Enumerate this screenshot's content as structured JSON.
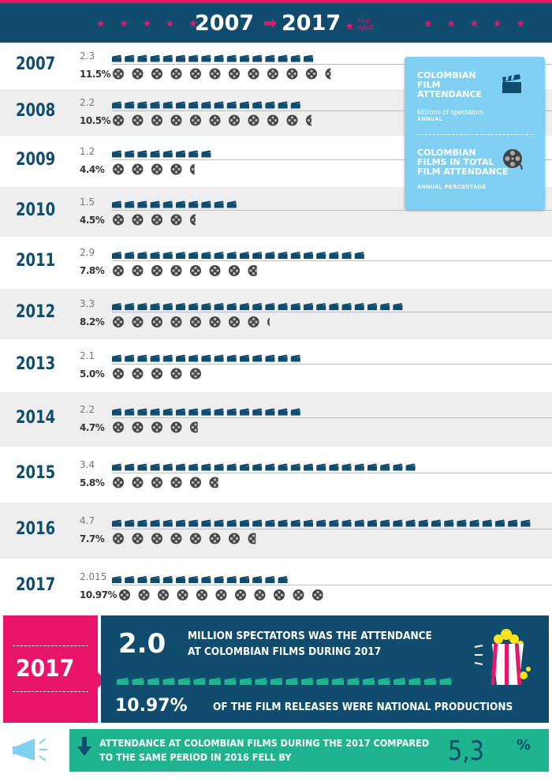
{
  "header": {
    "year_start": "2007",
    "year_end": "2017",
    "note_line1": "First",
    "note_line2": "HALF",
    "stars_left": "★ ★ ★ ★ ★",
    "stars_right": "★ ★ ★ ★ ★"
  },
  "legend": {
    "attendance_title_line1": "COLOMBIAN",
    "attendance_title_line2": "FILM",
    "attendance_title_line3": "ATTENDANCE",
    "attendance_subtitle": "Millions of spectators",
    "attendance_unit": "ANNUAL",
    "share_title_line1": "COLOMBIAN",
    "share_title_line2": "FILMS IN TOTAL",
    "share_title_line3": "FILM ATTENDANCE",
    "share_unit": "ANNUAL PERCENTAGE",
    "attendance_icon": "clapperboard-icon",
    "share_icon": "film-reel-icon"
  },
  "chart_data": {
    "type": "bar",
    "title": "2007 → 2017",
    "categories": [
      "2007",
      "2008",
      "2009",
      "2010",
      "2011",
      "2012",
      "2013",
      "2014",
      "2015",
      "2016",
      "2017"
    ],
    "series": [
      {
        "name": "COLOMBIAN FILM ATTENDANCE",
        "unit": "Millions of spectators",
        "values": [
          2.3,
          2.2,
          1.2,
          1.5,
          2.9,
          3.3,
          2.1,
          2.2,
          3.4,
          4.7,
          2.015
        ],
        "labels": [
          "2.3",
          "2.2",
          "1.2",
          "1.5",
          "2.9",
          "3.3",
          "2.1",
          "2.2",
          "3.4",
          "4.7",
          "2.015"
        ],
        "icon": "clapperboard-icon",
        "color": "#0f4c6e"
      },
      {
        "name": "COLOMBIAN FILMS IN TOTAL FILM ATTENDANCE",
        "unit": "ANNUAL PERCENTAGE",
        "values": [
          11.5,
          10.5,
          4.4,
          4.5,
          7.8,
          8.2,
          5.0,
          4.7,
          5.8,
          7.7,
          10.97
        ],
        "labels": [
          "11.5%",
          "10.5%",
          "4.4%",
          "4.5%",
          "7.8%",
          "8.2%",
          "5.0%",
          "4.7%",
          "5.8%",
          "7.7%",
          "10.97%"
        ],
        "icon": "film-reel-icon",
        "color": "#555555"
      }
    ]
  },
  "summary": {
    "year": "2017",
    "big_value": "2.0",
    "line1": "MILLION SPECTATORS WAS THE ATTENDANCE",
    "line2": "AT COLOMBIAN FILMS DURING 2017",
    "pct_value": "10.97%",
    "pct_text": "OF THE FILM RELEASES WERE NATIONAL PRODUCTIONS",
    "clapper_color": "#1eb48e",
    "icon": "popcorn-icon"
  },
  "footer": {
    "line1": "ATTENDANCE AT COLOMBIAN FILMS DURING THE 2017 COMPARED",
    "line2": "TO THE SAME PERIOD IN 2016 FELL BY",
    "value": "5,3",
    "symbol": "%",
    "icon": "megaphone-icon",
    "arrow_icon": "arrow-down-icon"
  },
  "colors": {
    "navy": "#0f4c6e",
    "pink": "#e8156b",
    "light_blue": "#7fd0f2",
    "green": "#1eb48e",
    "row_alt": "#eeeeee"
  }
}
